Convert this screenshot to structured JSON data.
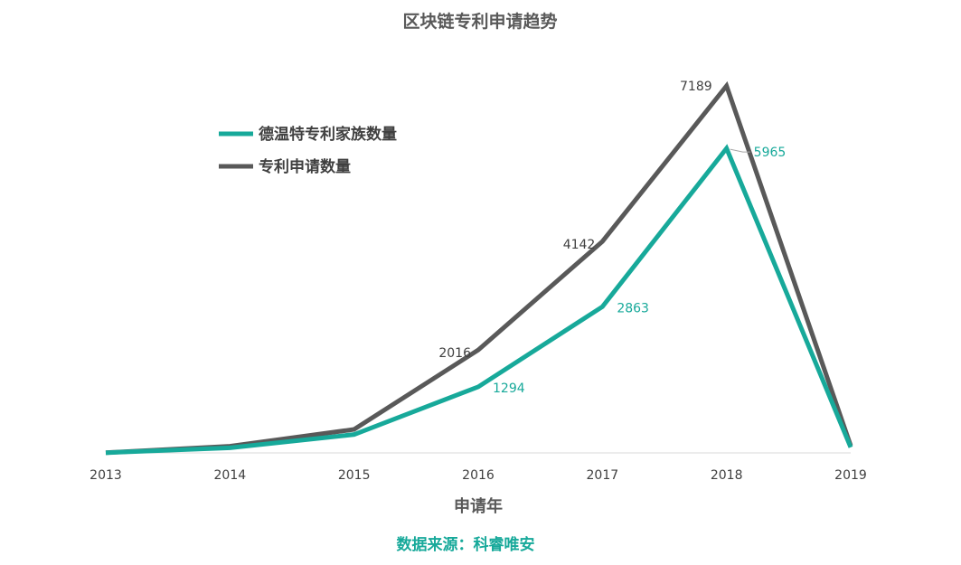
{
  "chart_data": {
    "type": "line",
    "title": "区块链专利申请趋势",
    "xlabel": "申请年",
    "ylabel": "",
    "source": "数据来源：科睿唯安",
    "categories": [
      "2013",
      "2014",
      "2015",
      "2016",
      "2017",
      "2018",
      "2019"
    ],
    "ylim": [
      0,
      7189
    ],
    "grid": false,
    "legend_position": "top-left",
    "series": [
      {
        "name": "德温特专利家族数量",
        "color": "#17a99a",
        "values": [
          3,
          100,
          360,
          1294,
          2863,
          5965,
          110
        ],
        "labels": [
          "",
          "",
          "",
          "1294",
          "2863",
          "5965",
          ""
        ]
      },
      {
        "name": "专利申请数量",
        "color": "#595959",
        "values": [
          5,
          130,
          460,
          2016,
          4142,
          7189,
          140
        ],
        "labels": [
          "",
          "",
          "",
          "2016",
          "4142",
          "7189",
          ""
        ]
      }
    ]
  }
}
